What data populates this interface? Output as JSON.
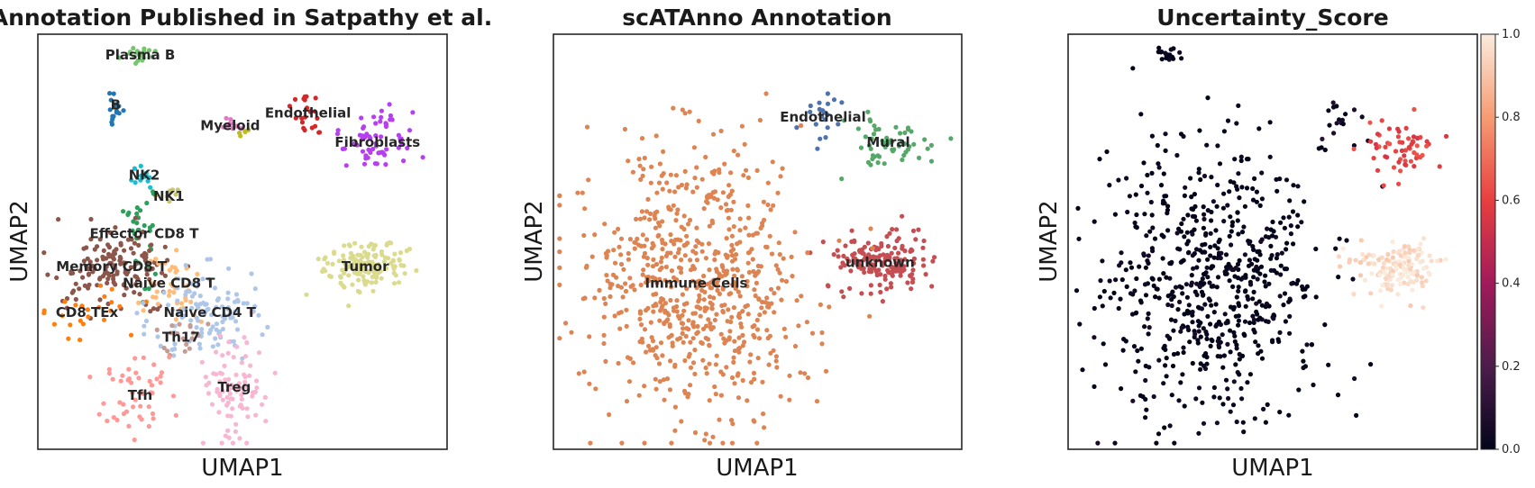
{
  "chart_data": [
    {
      "type": "scatter",
      "title": "Annotation Published in Satpathy et al.",
      "xlabel": "UMAP1",
      "ylabel": "UMAP2",
      "grid": false,
      "xlim": [
        0,
        10
      ],
      "ylim": [
        0,
        10
      ],
      "clusters": [
        {
          "label": "Plasma B",
          "color": "#77c66f",
          "center": [
            2.5,
            9.5
          ],
          "spread": [
            0.2,
            0.08
          ],
          "n": 22
        },
        {
          "label": "B",
          "color": "#1f77b4",
          "center": [
            1.9,
            8.3
          ],
          "spread": [
            0.1,
            0.3
          ],
          "n": 18
        },
        {
          "label": "Myeloid",
          "color": "#e377c2",
          "center": [
            4.7,
            7.8
          ],
          "spread": [
            0.2,
            0.15
          ],
          "n": 10
        },
        {
          "label": "",
          "color": "#bcbd22",
          "center": [
            5.0,
            7.6
          ],
          "spread": [
            0.1,
            0.08
          ],
          "n": 5
        },
        {
          "label": "Endothelial",
          "color": "#d62728",
          "center": [
            6.6,
            8.1
          ],
          "spread": [
            0.2,
            0.3
          ],
          "n": 22
        },
        {
          "label": "Fibroblasts",
          "color": "#b63fef",
          "center": [
            8.3,
            7.4
          ],
          "spread": [
            0.5,
            0.35
          ],
          "n": 60
        },
        {
          "label": "NK2",
          "color": "#17becf",
          "center": [
            2.6,
            6.6
          ],
          "spread": [
            0.18,
            0.15
          ],
          "n": 14
        },
        {
          "label": "NK1",
          "color": "#c7c769",
          "center": [
            3.2,
            6.1
          ],
          "spread": [
            0.2,
            0.08
          ],
          "n": 8
        },
        {
          "label": "Effector CD8 T",
          "color": "#2ca05a",
          "center": [
            2.6,
            5.2
          ],
          "spread": [
            0.25,
            0.6
          ],
          "n": 30
        },
        {
          "label": "Memory CD8 T",
          "color": "#8c564b",
          "center": [
            1.8,
            4.4
          ],
          "spread": [
            0.7,
            0.45
          ],
          "n": 150
        },
        {
          "label": "Naive CD8 T",
          "color": "#ffbb78",
          "center": [
            3.2,
            4.0
          ],
          "spread": [
            0.4,
            0.4
          ],
          "n": 40
        },
        {
          "label": "CD8 TEx",
          "color": "#ff7f0e",
          "center": [
            1.2,
            3.3
          ],
          "spread": [
            0.6,
            0.4
          ],
          "n": 25
        },
        {
          "label": "Naive CD4 T",
          "color": "#aec7e8",
          "center": [
            4.2,
            3.3
          ],
          "spread": [
            0.6,
            0.55
          ],
          "n": 110
        },
        {
          "label": "Th17",
          "color": "#c49c94",
          "center": [
            3.5,
            2.7
          ],
          "spread": [
            0.3,
            0.3
          ],
          "n": 18
        },
        {
          "label": "Tfh",
          "color": "#ff9896",
          "center": [
            2.5,
            1.3
          ],
          "spread": [
            0.5,
            0.45
          ],
          "n": 50
        },
        {
          "label": "Treg",
          "color": "#f7b6d2",
          "center": [
            4.8,
            1.5
          ],
          "spread": [
            0.35,
            0.6
          ],
          "n": 90
        },
        {
          "label": "Tumor",
          "color": "#dbdb8d",
          "center": [
            8.0,
            4.4
          ],
          "spread": [
            0.5,
            0.3
          ],
          "n": 160
        }
      ]
    },
    {
      "type": "scatter",
      "title": "scATAnno Annotation",
      "xlabel": "UMAP1",
      "ylabel": "UMAP2",
      "grid": false,
      "xlim": [
        0,
        10
      ],
      "ylim": [
        0,
        10
      ],
      "clusters": [
        {
          "label": "Endothelial",
          "color": "#4c72b0",
          "center": [
            6.6,
            8.0
          ],
          "spread": [
            0.25,
            0.3
          ],
          "n": 20
        },
        {
          "label": "Mural",
          "color": "#55a868",
          "center": [
            8.2,
            7.4
          ],
          "spread": [
            0.5,
            0.35
          ],
          "n": 60
        },
        {
          "label": "unknown",
          "color": "#c44e52",
          "center": [
            8.0,
            4.5
          ],
          "spread": [
            0.6,
            0.4
          ],
          "n": 170
        },
        {
          "label": "Immune Cells",
          "color": "#dd8452",
          "center": [
            3.5,
            4.0
          ],
          "spread": [
            1.3,
            1.6
          ],
          "n": 700
        }
      ]
    },
    {
      "type": "scatter",
      "title": "Uncertainty_Score",
      "xlabel": "UMAP1",
      "ylabel": "UMAP2",
      "grid": false,
      "xlim": [
        0,
        10
      ],
      "ylim": [
        0,
        10
      ],
      "colorbar": {
        "range": [
          0,
          1
        ],
        "ticks": [
          "0.0",
          "0.2",
          "0.4",
          "0.6",
          "0.8",
          "1.0"
        ],
        "colormap": "rocket"
      },
      "clusters": [
        {
          "label": "",
          "score": 0.0,
          "center": [
            3.5,
            4.0
          ],
          "spread": [
            1.3,
            1.6
          ],
          "n": 650
        },
        {
          "label": "",
          "score": 0.0,
          "center": [
            2.5,
            9.5
          ],
          "spread": [
            0.2,
            0.08
          ],
          "n": 20
        },
        {
          "label": "",
          "score": 0.05,
          "center": [
            6.6,
            8.0
          ],
          "spread": [
            0.25,
            0.3
          ],
          "n": 18
        },
        {
          "label": "",
          "score": 0.6,
          "center": [
            8.2,
            7.3
          ],
          "spread": [
            0.5,
            0.35
          ],
          "n": 60
        },
        {
          "label": "",
          "score": 0.97,
          "center": [
            8.0,
            4.4
          ],
          "spread": [
            0.5,
            0.3
          ],
          "n": 150
        }
      ]
    }
  ]
}
